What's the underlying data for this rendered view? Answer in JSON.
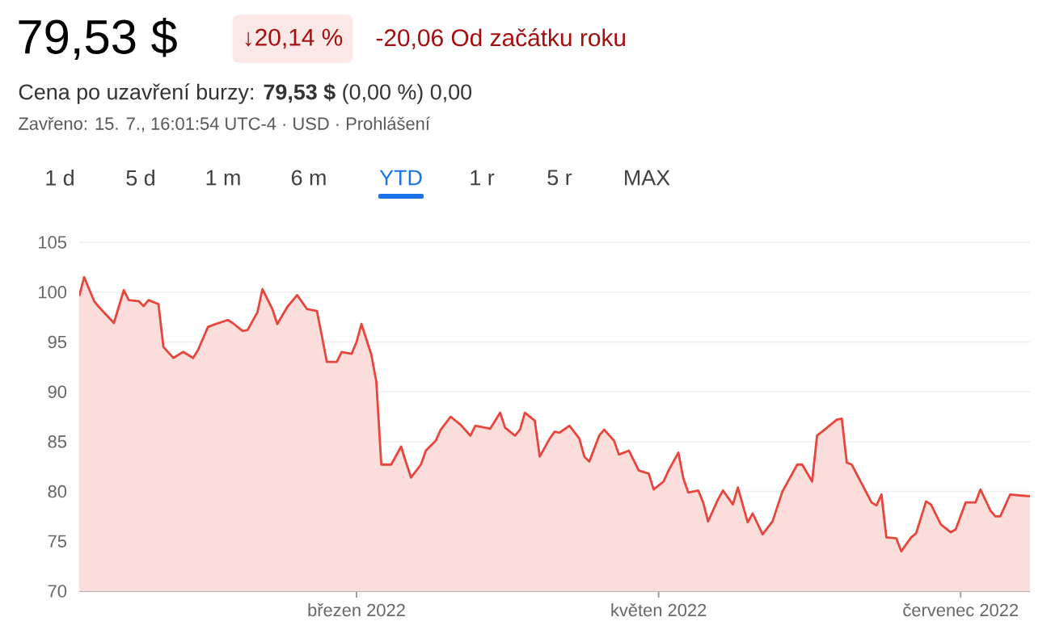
{
  "chart_data": {
    "type": "area",
    "title": "79,53 $",
    "annotations": [
      "↓20,14 %",
      "-20,06 Od začátku roku",
      "Cena po uzavření burzy: **79,53 $** (0,00 %) 0,00",
      "Zavřeno: 15. 7., 16:01:54 UTC-4 · USD · Prohlášení",
      "1 d",
      "5 d",
      "1 m",
      "6 m",
      "YTD",
      "1 r",
      "5 r",
      "MAX"
    ],
    "x": [
      "2022-01-04",
      "2022-01-05",
      "2022-01-07",
      "2022-01-08",
      "2022-01-11",
      "2022-01-13",
      "2022-01-14",
      "2022-01-16",
      "2022-01-17",
      "2022-01-18",
      "2022-01-20",
      "2022-01-21",
      "2022-01-23",
      "2022-01-25",
      "2022-01-27",
      "2022-01-28",
      "2022-01-30",
      "2022-01-31",
      "2022-02-03",
      "2022-02-04",
      "2022-02-06",
      "2022-02-07",
      "2022-02-09",
      "2022-02-10",
      "2022-02-12",
      "2022-02-13",
      "2022-02-15",
      "2022-02-17",
      "2022-02-19",
      "2022-02-21",
      "2022-02-22",
      "2022-02-23",
      "2022-02-25",
      "2022-02-26",
      "2022-02-28",
      "2022-03-01",
      "2022-03-02",
      "2022-03-04",
      "2022-03-05",
      "2022-03-06",
      "2022-03-08",
      "2022-03-10",
      "2022-03-11",
      "2022-03-12",
      "2022-03-14",
      "2022-03-15",
      "2022-03-17",
      "2022-03-18",
      "2022-03-20",
      "2022-03-22",
      "2022-03-24",
      "2022-03-25",
      "2022-03-28",
      "2022-03-30",
      "2022-03-31",
      "2022-04-02",
      "2022-04-03",
      "2022-04-04",
      "2022-04-06",
      "2022-04-07",
      "2022-04-09",
      "2022-04-10",
      "2022-04-11",
      "2022-04-13",
      "2022-04-15",
      "2022-04-16",
      "2022-04-17",
      "2022-04-19",
      "2022-04-20",
      "2022-04-22",
      "2022-04-23",
      "2022-04-25",
      "2022-04-27",
      "2022-04-29",
      "2022-04-30",
      "2022-05-02",
      "2022-05-03",
      "2022-05-05",
      "2022-05-06",
      "2022-05-07",
      "2022-05-09",
      "2022-05-10",
      "2022-05-11",
      "2022-05-13",
      "2022-05-14",
      "2022-05-16",
      "2022-05-17",
      "2022-05-19",
      "2022-05-20",
      "2022-05-22",
      "2022-05-24",
      "2022-05-26",
      "2022-05-29",
      "2022-05-30",
      "2022-06-01",
      "2022-06-02",
      "2022-06-04",
      "2022-06-06",
      "2022-06-07",
      "2022-06-08",
      "2022-06-09",
      "2022-06-11",
      "2022-06-13",
      "2022-06-14",
      "2022-06-15",
      "2022-06-16",
      "2022-06-18",
      "2022-06-19",
      "2022-06-21",
      "2022-06-22",
      "2022-06-24",
      "2022-06-25",
      "2022-06-27",
      "2022-06-29",
      "2022-06-30",
      "2022-07-02",
      "2022-07-04",
      "2022-07-05",
      "2022-07-07",
      "2022-07-08",
      "2022-07-09",
      "2022-07-11",
      "2022-07-13",
      "2022-07-15"
    ],
    "values": [
      99.6,
      101.5,
      99.1,
      98.5,
      96.9,
      100.2,
      99.2,
      99.1,
      98.6,
      99.2,
      98.8,
      94.5,
      93.4,
      94.0,
      93.4,
      94.2,
      96.5,
      96.7,
      97.2,
      96.9,
      96.1,
      96.2,
      98.0,
      100.3,
      98.3,
      96.8,
      98.5,
      99.7,
      98.3,
      98.1,
      95.6,
      93.0,
      93.0,
      94.0,
      93.8,
      95.0,
      96.8,
      93.7,
      91.0,
      82.7,
      82.7,
      84.5,
      82.9,
      81.4,
      82.7,
      84.1,
      85.1,
      86.2,
      87.5,
      86.7,
      85.6,
      86.6,
      86.3,
      87.9,
      86.4,
      85.6,
      86.2,
      87.9,
      87.1,
      83.5,
      85.3,
      86.0,
      85.9,
      86.6,
      85.3,
      83.5,
      83.0,
      85.6,
      86.2,
      85.1,
      83.7,
      84.1,
      82.1,
      81.8,
      80.2,
      81.0,
      82.1,
      83.9,
      81.3,
      79.9,
      80.1,
      78.9,
      77.0,
      79.2,
      80.1,
      78.7,
      80.4,
      76.9,
      77.8,
      75.7,
      77.0,
      80.0,
      82.7,
      82.7,
      81.0,
      85.6,
      86.4,
      87.2,
      87.3,
      82.9,
      82.7,
      80.8,
      78.9,
      78.6,
      79.7,
      75.4,
      75.3,
      74.0,
      75.4,
      75.8,
      79.0,
      78.7,
      76.7,
      75.9,
      76.2,
      78.9,
      78.9,
      80.2,
      78.1,
      77.5,
      77.5,
      79.7,
      79.6,
      79.53
    ],
    "color": "#e8453c",
    "xlim": [
      "2022-01-04",
      "2022-07-15"
    ],
    "xticks": [
      {
        "value": "2022-03-01",
        "label": "březen 2022"
      },
      {
        "value": "2022-05-01",
        "label": "květen 2022"
      },
      {
        "value": "2022-07-01",
        "label": "červenec 2022"
      }
    ],
    "ylim": [
      70,
      105
    ],
    "yticks": [
      70,
      75,
      80,
      85,
      90,
      95,
      100,
      105
    ],
    "grid": "y"
  }
}
